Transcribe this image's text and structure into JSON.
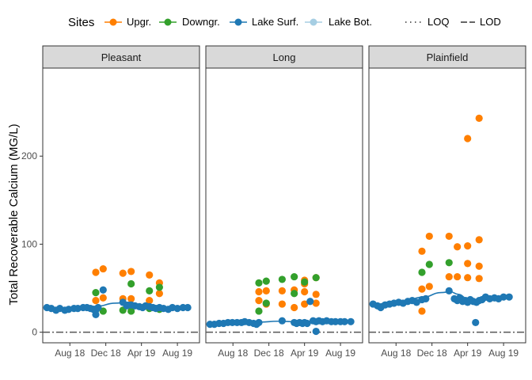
{
  "chart_data": {
    "type": "scatter",
    "ylabel": "Total Recoverable Calcium (MG/L)",
    "xlabel": "",
    "ylim": [
      -12,
      300
    ],
    "xlim": [
      "2018-05-01",
      "2019-10-15"
    ],
    "y_ticks": [
      0,
      100,
      200
    ],
    "x_ticks": [
      {
        "date": "2018-08-01",
        "label": "Aug 18"
      },
      {
        "date": "2018-12-01",
        "label": "Dec 18"
      },
      {
        "date": "2019-04-01",
        "label": "Apr 19"
      },
      {
        "date": "2019-08-01",
        "label": "Aug 19"
      }
    ],
    "grid": false,
    "legend_position": "top",
    "legend": {
      "title": "Sites",
      "entries": [
        {
          "label": "Upgr.",
          "color": "#ff7f00"
        },
        {
          "label": "Downgr.",
          "color": "#33a02c"
        },
        {
          "label": "Lake Surf.",
          "color": "#1f78b4"
        },
        {
          "label": "Lake Bot.",
          "color": "#a6cee3"
        }
      ],
      "line_entries": [
        {
          "label": "LOQ",
          "style": "dotted"
        },
        {
          "label": "LOD",
          "style": "dashed"
        }
      ]
    },
    "reference_line": {
      "y": 0,
      "style": "dashdot",
      "color": "#555555"
    },
    "panels": [
      {
        "title": "Pleasant",
        "series": [
          {
            "name": "Upgr.",
            "color": "#ff7f00",
            "points": [
              [
                "2018-10-28",
                68
              ],
              [
                "2018-10-28",
                36
              ],
              [
                "2018-11-22",
                72
              ],
              [
                "2018-11-22",
                39
              ],
              [
                "2019-01-28",
                67
              ],
              [
                "2019-01-28",
                38
              ],
              [
                "2019-02-25",
                69
              ],
              [
                "2019-02-25",
                38
              ],
              [
                "2019-04-28",
                65
              ],
              [
                "2019-04-28",
                36
              ],
              [
                "2019-06-01",
                56
              ],
              [
                "2019-06-01",
                44
              ]
            ]
          },
          {
            "name": "Downgr.",
            "color": "#33a02c",
            "points": [
              [
                "2018-10-28",
                45
              ],
              [
                "2018-11-22",
                24
              ],
              [
                "2019-01-28",
                25
              ],
              [
                "2019-02-25",
                55
              ],
              [
                "2019-02-25",
                24
              ],
              [
                "2019-04-28",
                47
              ],
              [
                "2019-04-28",
                27
              ],
              [
                "2019-06-01",
                51
              ],
              [
                "2019-06-01",
                26
              ]
            ]
          },
          {
            "name": "Lake Surf.",
            "color": "#1f78b4",
            "points": [
              [
                "2018-05-15",
                28
              ],
              [
                "2018-05-30",
                27
              ],
              [
                "2018-06-15",
                25
              ],
              [
                "2018-06-28",
                27
              ],
              [
                "2018-07-15",
                25
              ],
              [
                "2018-07-28",
                26
              ],
              [
                "2018-08-15",
                27
              ],
              [
                "2018-08-28",
                27
              ],
              [
                "2018-09-15",
                28
              ],
              [
                "2018-09-28",
                28
              ],
              [
                "2018-10-10",
                27
              ],
              [
                "2018-10-20",
                26
              ],
              [
                "2018-10-28",
                20
              ],
              [
                "2018-10-28",
                25
              ],
              [
                "2018-11-05",
                28
              ],
              [
                "2018-11-22",
                48
              ],
              [
                "2019-01-28",
                34
              ],
              [
                "2019-02-10",
                30
              ],
              [
                "2019-02-25",
                31
              ],
              [
                "2019-03-10",
                30
              ],
              [
                "2019-03-25",
                29
              ],
              [
                "2019-04-05",
                28
              ],
              [
                "2019-04-15",
                30
              ],
              [
                "2019-04-28",
                29
              ],
              [
                "2019-05-10",
                28
              ],
              [
                "2019-05-20",
                27
              ],
              [
                "2019-06-01",
                28
              ],
              [
                "2019-06-15",
                27
              ],
              [
                "2019-07-01",
                26
              ],
              [
                "2019-07-15",
                28
              ],
              [
                "2019-08-01",
                27
              ],
              [
                "2019-08-20",
                28
              ],
              [
                "2019-09-05",
                28
              ]
            ]
          }
        ],
        "trend": [
          [
            "2018-05-15",
            29
          ],
          [
            "2018-07-01",
            26.5
          ],
          [
            "2018-09-01",
            27
          ],
          [
            "2018-11-01",
            29.5
          ],
          [
            "2019-01-01",
            33
          ],
          [
            "2019-02-15",
            34
          ],
          [
            "2019-04-01",
            31
          ],
          [
            "2019-06-01",
            28
          ],
          [
            "2019-08-01",
            27.5
          ],
          [
            "2019-09-05",
            28
          ]
        ]
      },
      {
        "title": "Long",
        "series": [
          {
            "name": "Upgr.",
            "color": "#ff7f00",
            "points": [
              [
                "2018-10-28",
                46
              ],
              [
                "2018-10-28",
                36
              ],
              [
                "2018-11-22",
                47
              ],
              [
                "2018-11-22",
                32
              ],
              [
                "2019-01-15",
                47
              ],
              [
                "2019-01-15",
                32
              ],
              [
                "2019-02-25",
                48
              ],
              [
                "2019-02-25",
                28
              ],
              [
                "2019-04-01",
                59
              ],
              [
                "2019-04-01",
                55
              ],
              [
                "2019-04-01",
                46
              ],
              [
                "2019-04-01",
                32
              ],
              [
                "2019-05-10",
                62
              ],
              [
                "2019-05-10",
                43
              ],
              [
                "2019-05-10",
                33
              ]
            ]
          },
          {
            "name": "Downgr.",
            "color": "#33a02c",
            "points": [
              [
                "2018-10-28",
                56
              ],
              [
                "2018-10-28",
                24
              ],
              [
                "2018-11-22",
                58
              ],
              [
                "2018-11-22",
                33
              ],
              [
                "2019-01-15",
                60
              ],
              [
                "2019-02-25",
                63
              ],
              [
                "2019-02-25",
                44
              ],
              [
                "2019-04-01",
                57
              ],
              [
                "2019-05-10",
                62
              ]
            ]
          },
          {
            "name": "Lake Surf.",
            "color": "#1f78b4",
            "points": [
              [
                "2018-05-15",
                9
              ],
              [
                "2018-05-30",
                9
              ],
              [
                "2018-06-15",
                10
              ],
              [
                "2018-06-30",
                10
              ],
              [
                "2018-07-15",
                11
              ],
              [
                "2018-07-30",
                11
              ],
              [
                "2018-08-15",
                11
              ],
              [
                "2018-08-30",
                11
              ],
              [
                "2018-09-10",
                12
              ],
              [
                "2018-09-25",
                11
              ],
              [
                "2018-10-10",
                10
              ],
              [
                "2018-10-20",
                9
              ],
              [
                "2018-10-28",
                11
              ],
              [
                "2019-01-15",
                13
              ],
              [
                "2019-02-25",
                11
              ],
              [
                "2019-03-05",
                10
              ],
              [
                "2019-03-15",
                11
              ],
              [
                "2019-03-25",
                10
              ],
              [
                "2019-04-01",
                11
              ],
              [
                "2019-04-10",
                10
              ],
              [
                "2019-04-20",
                35
              ],
              [
                "2019-04-30",
                13
              ],
              [
                "2019-05-10",
                12
              ],
              [
                "2019-05-10",
                1
              ],
              [
                "2019-05-20",
                13
              ],
              [
                "2019-06-01",
                12
              ],
              [
                "2019-06-15",
                13
              ],
              [
                "2019-07-01",
                12
              ],
              [
                "2019-07-15",
                12
              ],
              [
                "2019-08-01",
                12
              ],
              [
                "2019-08-15",
                12
              ],
              [
                "2019-09-05",
                12
              ]
            ]
          }
        ],
        "trend": [
          [
            "2018-05-15",
            9.5
          ],
          [
            "2018-07-01",
            10.5
          ],
          [
            "2018-09-01",
            11.5
          ],
          [
            "2018-11-01",
            11.5
          ],
          [
            "2019-01-01",
            12.5
          ],
          [
            "2019-03-01",
            12
          ],
          [
            "2019-05-01",
            12
          ],
          [
            "2019-07-01",
            12
          ],
          [
            "2019-09-05",
            12
          ]
        ]
      },
      {
        "title": "Plainfield",
        "series": [
          {
            "name": "Upgr.",
            "color": "#ff7f00",
            "points": [
              [
                "2018-10-28",
                92
              ],
              [
                "2018-10-28",
                49
              ],
              [
                "2018-10-28",
                24
              ],
              [
                "2018-11-22",
                109
              ],
              [
                "2018-11-22",
                52
              ],
              [
                "2019-01-28",
                109
              ],
              [
                "2019-01-28",
                63
              ],
              [
                "2019-02-25",
                97
              ],
              [
                "2019-02-25",
                63
              ],
              [
                "2019-04-01",
                220
              ],
              [
                "2019-04-01",
                98
              ],
              [
                "2019-04-01",
                78
              ],
              [
                "2019-04-01",
                62
              ],
              [
                "2019-05-10",
                243
              ],
              [
                "2019-05-10",
                105
              ],
              [
                "2019-05-10",
                75
              ],
              [
                "2019-05-10",
                61
              ]
            ]
          },
          {
            "name": "Downgr.",
            "color": "#33a02c",
            "points": [
              [
                "2018-10-28",
                68
              ],
              [
                "2018-11-22",
                77
              ],
              [
                "2019-01-28",
                79
              ]
            ]
          },
          {
            "name": "Lake Surf.",
            "color": "#1f78b4",
            "points": [
              [
                "2018-05-15",
                32
              ],
              [
                "2018-05-30",
                30
              ],
              [
                "2018-06-10",
                28
              ],
              [
                "2018-06-25",
                31
              ],
              [
                "2018-07-10",
                32
              ],
              [
                "2018-07-25",
                33
              ],
              [
                "2018-08-10",
                34
              ],
              [
                "2018-08-25",
                33
              ],
              [
                "2018-09-10",
                35
              ],
              [
                "2018-09-25",
                36
              ],
              [
                "2018-10-10",
                34
              ],
              [
                "2018-10-28",
                37
              ],
              [
                "2018-11-10",
                38
              ],
              [
                "2019-01-28",
                47
              ],
              [
                "2019-02-15",
                38
              ],
              [
                "2019-02-25",
                36
              ],
              [
                "2019-03-05",
                39
              ],
              [
                "2019-03-15",
                35
              ],
              [
                "2019-03-25",
                36
              ],
              [
                "2019-04-01",
                34
              ],
              [
                "2019-04-10",
                37
              ],
              [
                "2019-04-20",
                35
              ],
              [
                "2019-04-28",
                11
              ],
              [
                "2019-05-01",
                34
              ],
              [
                "2019-05-10",
                36
              ],
              [
                "2019-05-20",
                37
              ],
              [
                "2019-06-01",
                40
              ],
              [
                "2019-06-15",
                38
              ],
              [
                "2019-07-01",
                39
              ],
              [
                "2019-07-15",
                38
              ],
              [
                "2019-08-01",
                40
              ],
              [
                "2019-08-20",
                40
              ]
            ]
          }
        ],
        "trend": [
          [
            "2018-05-15",
            31
          ],
          [
            "2018-07-01",
            33
          ],
          [
            "2018-09-01",
            36
          ],
          [
            "2018-11-01",
            40
          ],
          [
            "2019-01-01",
            45
          ],
          [
            "2019-02-01",
            46
          ],
          [
            "2019-03-01",
            43
          ],
          [
            "2019-04-01",
            38
          ],
          [
            "2019-05-15",
            36
          ],
          [
            "2019-07-01",
            37.5
          ],
          [
            "2019-08-20",
            39.5
          ]
        ]
      }
    ]
  }
}
